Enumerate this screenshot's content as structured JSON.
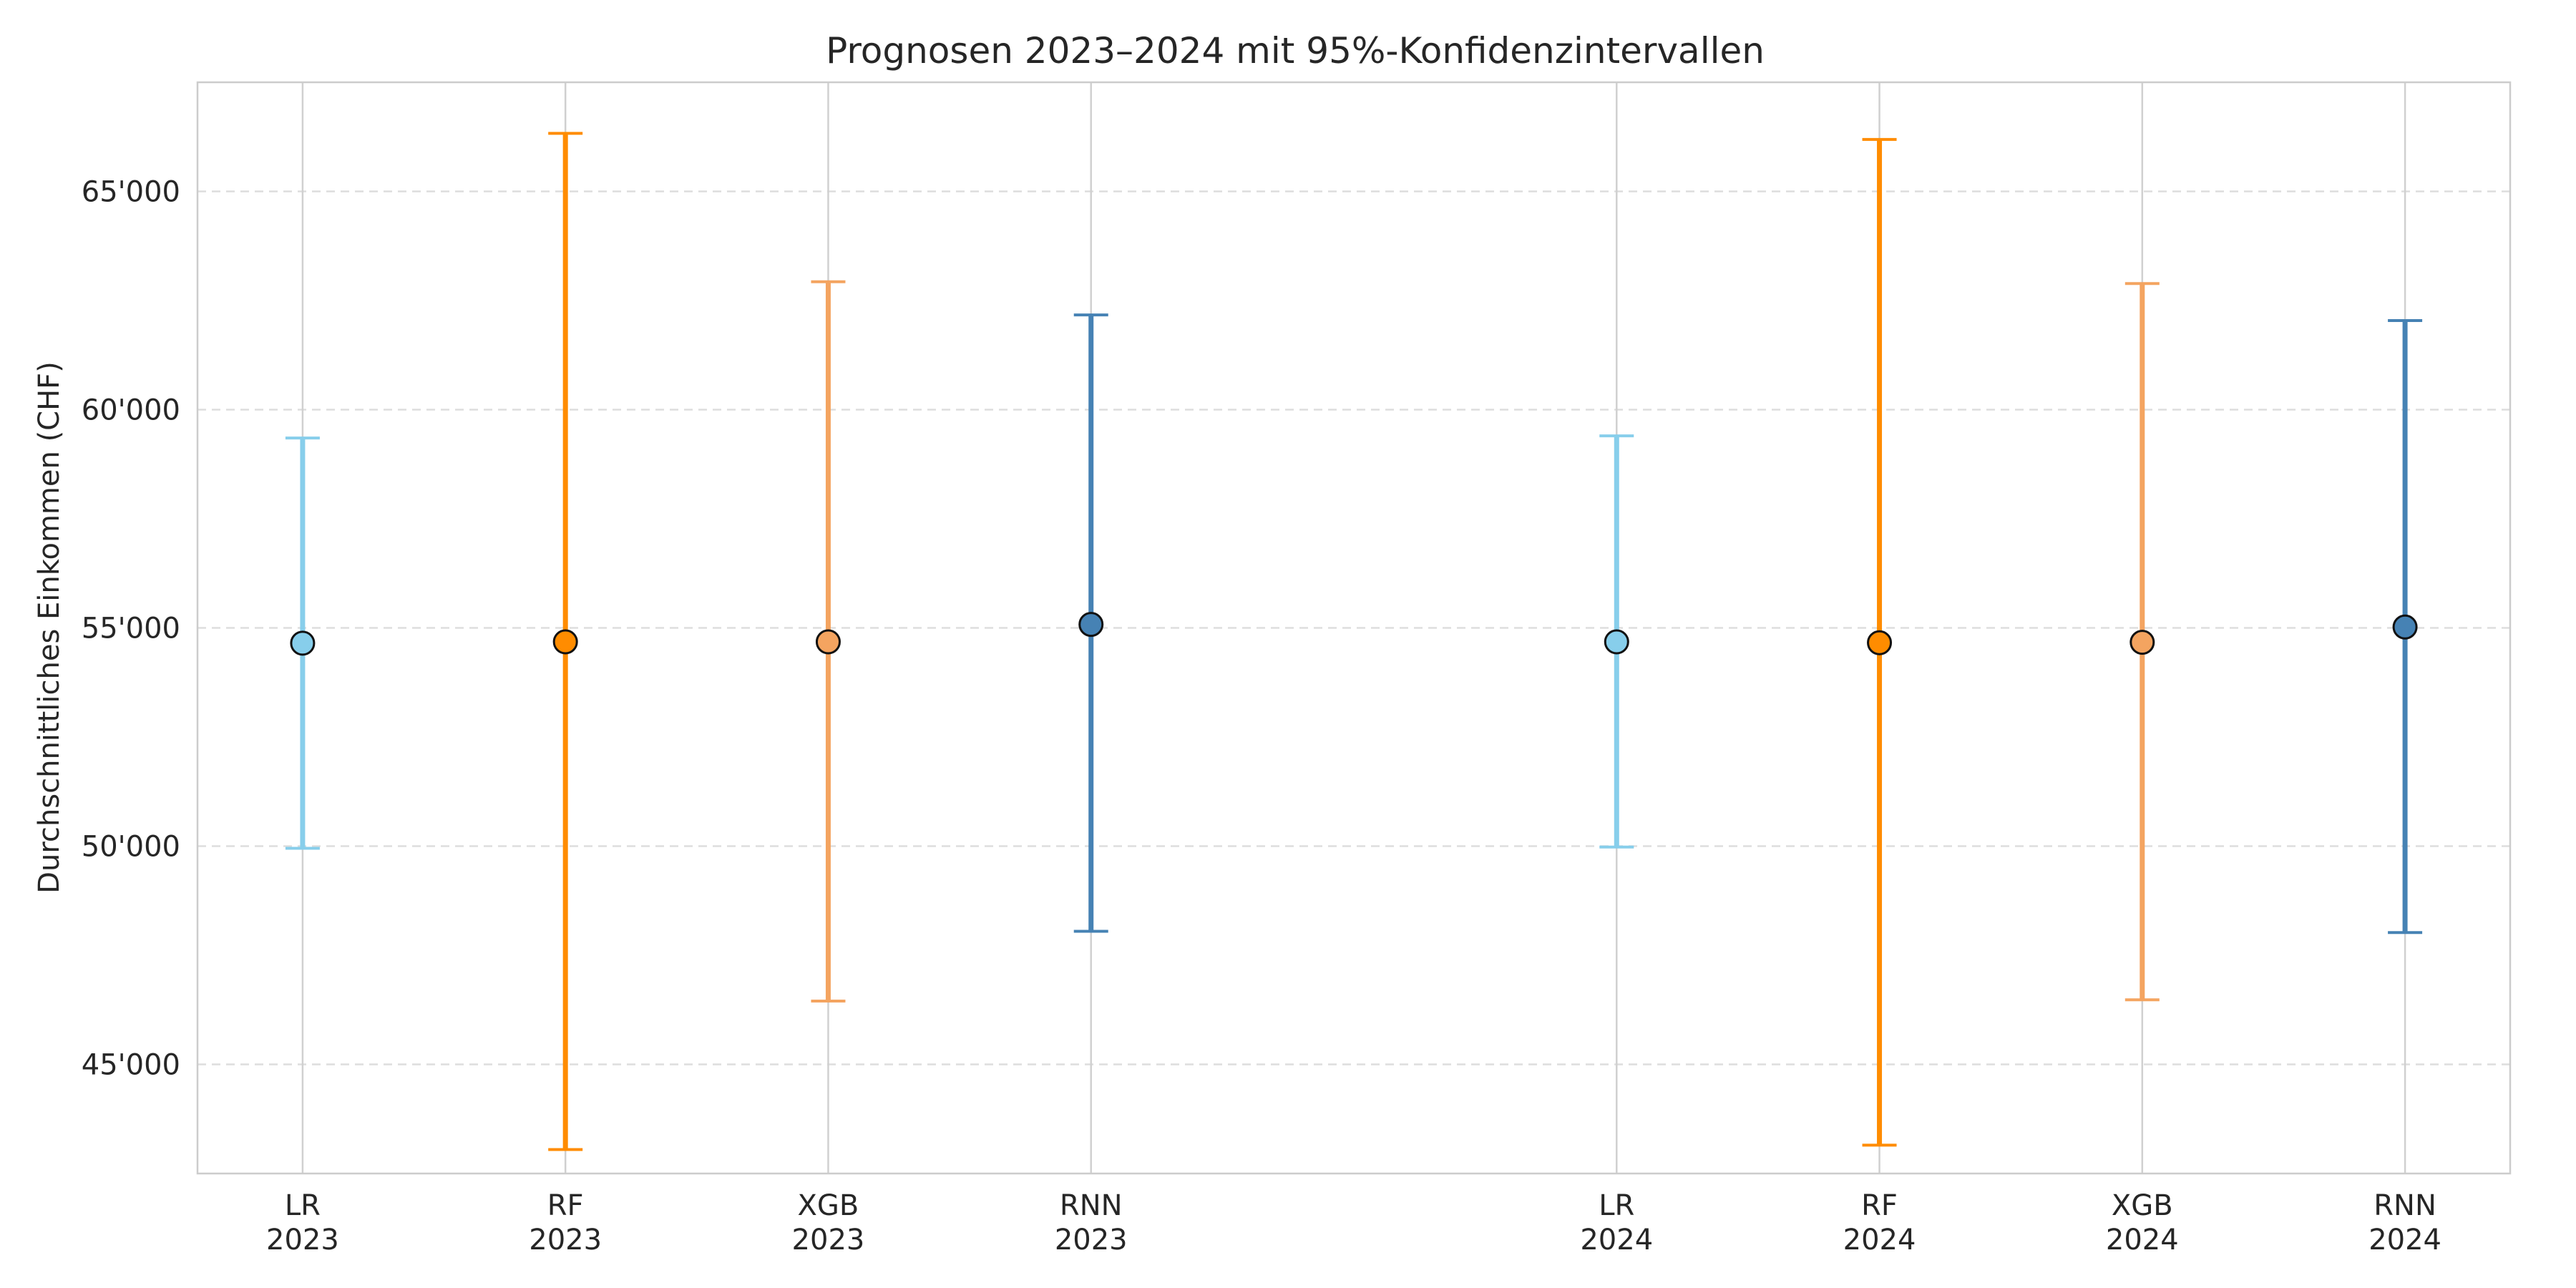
{
  "chart_data": {
    "type": "errorbar",
    "title": "Prognosen 2023–2024 mit 95%-Konfidenzintervallen",
    "ylabel": "Durchschnittliches Einkommen (CHF)",
    "ylim": [
      42500,
      67500
    ],
    "yticks": [
      {
        "value": 45000,
        "label": "45'000"
      },
      {
        "value": 50000,
        "label": "50'000"
      },
      {
        "value": 55000,
        "label": "55'000"
      },
      {
        "value": 60000,
        "label": "60'000"
      },
      {
        "value": 65000,
        "label": "65'000"
      }
    ],
    "grid": {
      "x": true,
      "y": true,
      "y_style": "dashed"
    },
    "points": [
      {
        "model": "LR",
        "year": "2023",
        "x": 0,
        "value": 54650,
        "lower": 49950,
        "upper": 59350,
        "color": "#87ceeb"
      },
      {
        "model": "RF",
        "year": "2023",
        "x": 1,
        "value": 54680,
        "lower": 43050,
        "upper": 66330,
        "color": "#ff8c00"
      },
      {
        "model": "XGB",
        "year": "2023",
        "x": 2,
        "value": 54680,
        "lower": 46450,
        "upper": 62930,
        "color": "#f4a460"
      },
      {
        "model": "RNN",
        "year": "2023",
        "x": 3,
        "value": 55080,
        "lower": 48050,
        "upper": 62170,
        "color": "#4682b4"
      },
      {
        "model": "LR",
        "year": "2024",
        "x": 5,
        "value": 54680,
        "lower": 49980,
        "upper": 59400,
        "color": "#87ceeb"
      },
      {
        "model": "RF",
        "year": "2024",
        "x": 6,
        "value": 54660,
        "lower": 43150,
        "upper": 66190,
        "color": "#ff8c00"
      },
      {
        "model": "XGB",
        "year": "2024",
        "x": 7,
        "value": 54670,
        "lower": 46480,
        "upper": 62890,
        "color": "#f4a460"
      },
      {
        "model": "RNN",
        "year": "2024",
        "x": 8,
        "value": 55020,
        "lower": 48020,
        "upper": 62040,
        "color": "#4682b4"
      }
    ]
  }
}
